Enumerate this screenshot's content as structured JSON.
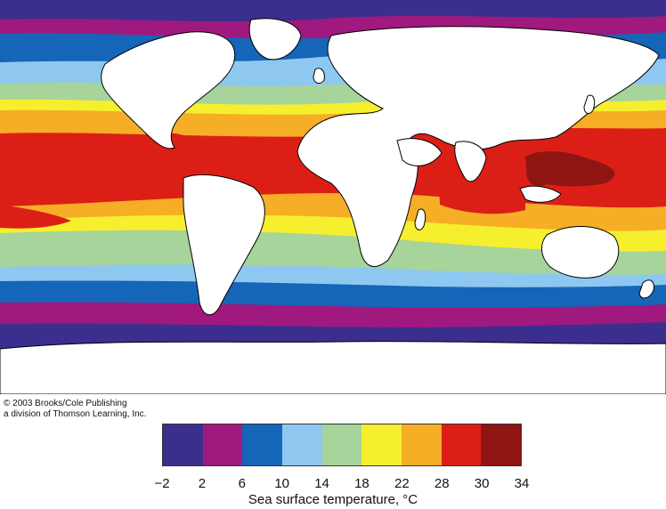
{
  "map": {
    "land_color": "#ffffff",
    "coast_color": "#000000"
  },
  "credit": {
    "line1": "© 2003 Brooks/Cole Publishing",
    "line2": "a division of Thomson Learning, Inc."
  },
  "legend": {
    "title": "Sea surface temperature, °C",
    "ticks": [
      "−2",
      "2",
      "6",
      "10",
      "14",
      "18",
      "22",
      "28",
      "30",
      "34"
    ],
    "colors": [
      "#3a2f8f",
      "#a0197e",
      "#1565b8",
      "#8ec8f0",
      "#a6d49a",
      "#f6ef2e",
      "#f5ae26",
      "#dc1f16",
      "#8e1512"
    ]
  }
}
